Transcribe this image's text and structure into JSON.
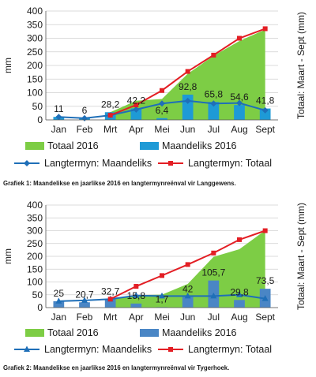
{
  "chart_data": [
    {
      "type": "bar",
      "categories": [
        "Jan",
        "Feb",
        "Mrt",
        "Apr",
        "Mei",
        "Jun",
        "Jul",
        "Aug",
        "Sept"
      ],
      "ylabel": "mm",
      "ylabel_right": "Totaal: Maart - Sept (mm)",
      "ylim": [
        0,
        400
      ],
      "yticks": [
        "0",
        "50",
        "100",
        "150",
        "200",
        "250",
        "300",
        "350",
        "400"
      ],
      "series": [
        {
          "name": "Totaal 2016",
          "kind": "area",
          "color": "#7dcd45",
          "values": [
            null,
            null,
            28.2,
            70.4,
            76.8,
            169.6,
            235.4,
            290.0,
            331.8
          ]
        },
        {
          "name": "Maandeliks 2016",
          "kind": "bar",
          "color": "#1e9ad6",
          "values": [
            11,
            6,
            28.2,
            42.2,
            6.4,
            92.8,
            65.8,
            54.6,
            41.8
          ]
        },
        {
          "name": "Langtermyn: Maandeliks",
          "kind": "line",
          "marker": "diamond",
          "color": "#1f6fb8",
          "values": [
            11,
            6,
            17,
            38,
            60,
            70,
            60,
            62,
            35
          ]
        },
        {
          "name": "Langtermyn: Totaal",
          "kind": "line",
          "marker": "square",
          "color": "#e31e24",
          "values": [
            null,
            null,
            17,
            55,
            108,
            178,
            238,
            300,
            335
          ]
        }
      ],
      "data_labels": [
        "11",
        "6",
        "28,2",
        "42,2",
        "6,4",
        "92,8",
        "65,8",
        "54,6",
        "41,8"
      ],
      "caption": "Grafiek 1: Maandelikse en jaarlikse 2016 en langtermynreënval vir Langgewens."
    },
    {
      "type": "bar",
      "categories": [
        "Jan",
        "Feb",
        "Mrt",
        "Apr",
        "Mei",
        "Jun",
        "Jul",
        "Aug",
        "Sept"
      ],
      "ylabel": "mm",
      "ylabel_right": "Totaal: Maart - Sept (mm)",
      "ylim": [
        0,
        400
      ],
      "yticks": [
        "0",
        "50",
        "100",
        "150",
        "200",
        "250",
        "300",
        "350",
        "400"
      ],
      "series": [
        {
          "name": "Totaal 2016",
          "kind": "area",
          "color": "#7dcd45",
          "values": [
            null,
            null,
            32.7,
            48.5,
            50.2,
            92.2,
            197.9,
            227.7,
            301.2
          ]
        },
        {
          "name": "Maandeliks 2016",
          "kind": "bar",
          "color": "#4a86c5",
          "values": [
            25,
            20.7,
            32.7,
            15.8,
            1.7,
            42,
            105.7,
            29.8,
            73.5
          ]
        },
        {
          "name": "Langtermyn: Maandeliks",
          "kind": "line",
          "marker": "triangle",
          "color": "#1f6fb8",
          "values": [
            25,
            28,
            33,
            47,
            45,
            45,
            45,
            50,
            35
          ]
        },
        {
          "name": "Langtermyn: Totaal",
          "kind": "line",
          "marker": "square",
          "color": "#e31e24",
          "values": [
            null,
            null,
            33,
            83,
            125,
            168,
            213,
            265,
            300
          ]
        }
      ],
      "data_labels": [
        "25",
        "20,7",
        "32,7",
        "15,8",
        "1,7",
        "42",
        "105,7",
        "29,8",
        "73,5"
      ],
      "caption": "Grafiek 2: Maandelikse en jaarlikse 2016 en langtermynreënval vir Tygerhoek."
    }
  ]
}
